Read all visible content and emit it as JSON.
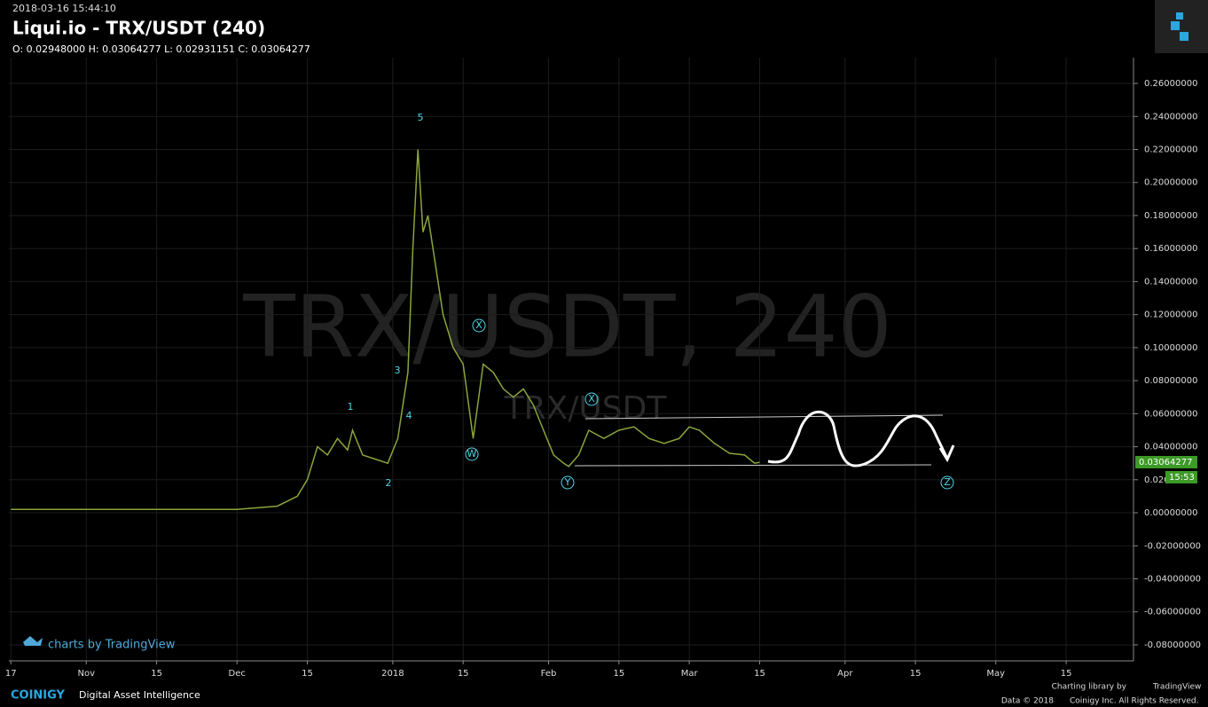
{
  "header": {
    "timestamp": "2018-03-16 15:44:10",
    "title": "Liqui.io - TRX/USDT (240)",
    "ohlc": "O: 0.02948000 H: 0.03064277 L: 0.02931151 C: 0.03064277"
  },
  "chart_data": {
    "type": "line",
    "watermark": "TRX/USDT, 240",
    "watermark_small": "TRX/USDT",
    "series": [
      {
        "color": "#8aa53c",
        "x": [
          0,
          30,
          45,
          53,
          57,
          59,
          61,
          63,
          65,
          67,
          68,
          70,
          73,
          75,
          77,
          79,
          80,
          81,
          82,
          83,
          84,
          86,
          88,
          90,
          92,
          94,
          96,
          98,
          100,
          102,
          104,
          106,
          108,
          110,
          111,
          113,
          115,
          118,
          121,
          124,
          127,
          130,
          133,
          135,
          137,
          140,
          143,
          146,
          148,
          149
        ],
        "values": [
          0.002,
          0.002,
          0.002,
          0.004,
          0.01,
          0.02,
          0.04,
          0.035,
          0.045,
          0.038,
          0.05,
          0.035,
          0.032,
          0.03,
          0.045,
          0.085,
          0.16,
          0.22,
          0.17,
          0.18,
          0.16,
          0.12,
          0.1,
          0.09,
          0.045,
          0.09,
          0.085,
          0.075,
          0.07,
          0.075,
          0.065,
          0.05,
          0.035,
          0.03,
          0.028,
          0.035,
          0.05,
          0.045,
          0.05,
          0.052,
          0.045,
          0.042,
          0.045,
          0.052,
          0.05,
          0.042,
          0.036,
          0.035,
          0.03,
          0.0306
        ]
      }
    ],
    "xlim": [
      -0.4,
      223.4
    ],
    "xticks": [
      {
        "value": 0,
        "label": "17"
      },
      {
        "value": 15,
        "label": "Nov"
      },
      {
        "value": 29,
        "label": "15"
      },
      {
        "value": 45,
        "label": "Dec"
      },
      {
        "value": 59,
        "label": "15"
      },
      {
        "value": 76,
        "label": "2018"
      },
      {
        "value": 90,
        "label": "15"
      },
      {
        "value": 107,
        "label": "Feb"
      },
      {
        "value": 121,
        "label": "15"
      },
      {
        "value": 135,
        "label": "Mar"
      },
      {
        "value": 149,
        "label": "15"
      },
      {
        "value": 166,
        "label": "Apr"
      },
      {
        "value": 180,
        "label": "15"
      },
      {
        "value": 196,
        "label": "May"
      },
      {
        "value": 210,
        "label": "15"
      }
    ],
    "ylim": [
      -0.0897,
      0.2756
    ],
    "yticks": [
      {
        "value": -0.08,
        "label": "-0.08000000"
      },
      {
        "value": -0.06,
        "label": "-0.06000000"
      },
      {
        "value": -0.04,
        "label": "-0.04000000"
      },
      {
        "value": -0.02,
        "label": "-0.02000000"
      },
      {
        "value": 0,
        "label": "0.00000000"
      },
      {
        "value": 0.02,
        "label": "0.020"
      },
      {
        "value": 0.04,
        "label": "0.04000000"
      },
      {
        "value": 0.06,
        "label": "0.06000000"
      },
      {
        "value": 0.08,
        "label": "0.08000000"
      },
      {
        "value": 0.1,
        "label": "0.10000000"
      },
      {
        "value": 0.12,
        "label": "0.12000000"
      },
      {
        "value": 0.14,
        "label": "0.14000000"
      },
      {
        "value": 0.16,
        "label": "0.16000000"
      },
      {
        "value": 0.18,
        "label": "0.18000000"
      },
      {
        "value": 0.2,
        "label": "0.20000000"
      },
      {
        "value": 0.22,
        "label": "0.22000000"
      },
      {
        "value": 0.24,
        "label": "0.24000000"
      },
      {
        "value": 0.26,
        "label": "0.26000000"
      }
    ],
    "grid": true,
    "last_price": 0.03064277,
    "countdown": "15:53",
    "annotations": [
      "5",
      "1",
      "2",
      "3",
      "4",
      "X",
      "W",
      "X",
      "Y",
      "Z"
    ]
  },
  "footer": {
    "tv_credit": "charts by TradingView",
    "brand": "COINIGY",
    "tagline": "Digital Asset Intelligence",
    "library": "Charting library by",
    "tv": "TradingView",
    "data": "Data © 2018",
    "rights": "Coinigy Inc. All Rights Reserved."
  }
}
